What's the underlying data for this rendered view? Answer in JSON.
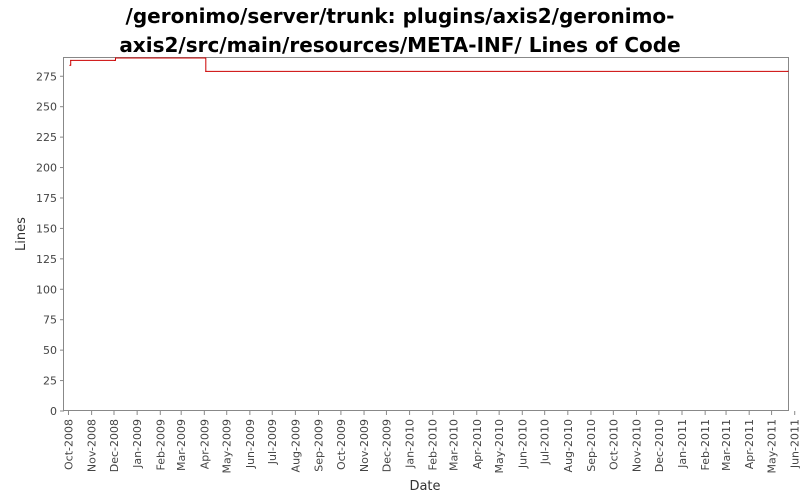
{
  "chart_data": {
    "type": "line",
    "title_line1": "/geronimo/server/trunk: plugins/axis2/geronimo-",
    "title_line2": "axis2/src/main/resources/META-INF/ Lines of Code",
    "xlabel": "Date",
    "ylabel": "Lines",
    "ylim": [
      0,
      290
    ],
    "yticks": [
      0,
      25,
      50,
      75,
      100,
      125,
      150,
      175,
      200,
      225,
      250,
      275
    ],
    "xlim": [
      "2008-09-25",
      "2011-05-23"
    ],
    "xticks": [
      {
        "date": "2008-10-01",
        "label": "Oct-2008"
      },
      {
        "date": "2008-11-01",
        "label": "Nov-2008"
      },
      {
        "date": "2008-12-01",
        "label": "Dec-2008"
      },
      {
        "date": "2009-01-01",
        "label": "Jan-2009"
      },
      {
        "date": "2009-02-01",
        "label": "Feb-2009"
      },
      {
        "date": "2009-03-01",
        "label": "Mar-2009"
      },
      {
        "date": "2009-04-01",
        "label": "Apr-2009"
      },
      {
        "date": "2009-05-01",
        "label": "May-2009"
      },
      {
        "date": "2009-06-01",
        "label": "Jun-2009"
      },
      {
        "date": "2009-07-01",
        "label": "Jul-2009"
      },
      {
        "date": "2009-08-01",
        "label": "Aug-2009"
      },
      {
        "date": "2009-09-01",
        "label": "Sep-2009"
      },
      {
        "date": "2009-10-01",
        "label": "Oct-2009"
      },
      {
        "date": "2009-11-01",
        "label": "Nov-2009"
      },
      {
        "date": "2009-12-01",
        "label": "Dec-2009"
      },
      {
        "date": "2010-01-01",
        "label": "Jan-2010"
      },
      {
        "date": "2010-02-01",
        "label": "Feb-2010"
      },
      {
        "date": "2010-03-01",
        "label": "Mar-2010"
      },
      {
        "date": "2010-04-01",
        "label": "Apr-2010"
      },
      {
        "date": "2010-05-01",
        "label": "May-2010"
      },
      {
        "date": "2010-06-01",
        "label": "Jun-2010"
      },
      {
        "date": "2010-07-01",
        "label": "Jul-2010"
      },
      {
        "date": "2010-08-01",
        "label": "Aug-2010"
      },
      {
        "date": "2010-09-01",
        "label": "Sep-2010"
      },
      {
        "date": "2010-10-01",
        "label": "Oct-2010"
      },
      {
        "date": "2010-11-01",
        "label": "Nov-2010"
      },
      {
        "date": "2010-12-01",
        "label": "Dec-2010"
      },
      {
        "date": "2011-01-01",
        "label": "Jan-2011"
      },
      {
        "date": "2011-02-01",
        "label": "Feb-2011"
      },
      {
        "date": "2011-03-01",
        "label": "Mar-2011"
      },
      {
        "date": "2011-04-01",
        "label": "Apr-2011"
      },
      {
        "date": "2011-05-01",
        "label": "May-2011"
      },
      {
        "date": "2011-06-01",
        "label": "Jun-2011"
      }
    ],
    "series": [
      {
        "color": "#cc0000",
        "step": true,
        "points": [
          {
            "x": "2008-10-03",
            "y": 284
          },
          {
            "x": "2008-10-04",
            "y": 288
          },
          {
            "x": "2008-12-02",
            "y": 288
          },
          {
            "x": "2008-12-03",
            "y": 290
          },
          {
            "x": "2009-04-02",
            "y": 290
          },
          {
            "x": "2009-04-03",
            "y": 279
          },
          {
            "x": "2011-05-23",
            "y": 279
          }
        ]
      }
    ],
    "grid": false,
    "legend": "none",
    "colors": {
      "line": "#cc0000",
      "axis": "#888888",
      "text": "#444444"
    }
  }
}
